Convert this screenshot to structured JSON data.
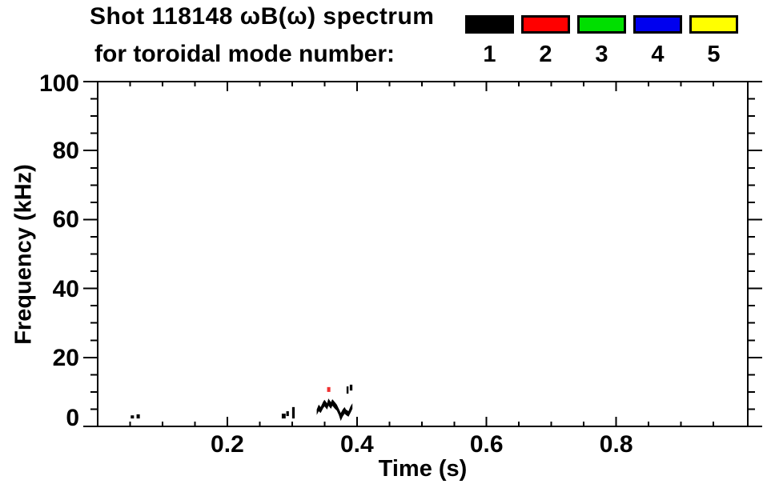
{
  "title": {
    "line1": "Shot 118148 ωB(ω) spectrum",
    "line2": "for toroidal mode number:"
  },
  "legend": {
    "items": [
      {
        "label": "1",
        "color": "#000000"
      },
      {
        "label": "2",
        "color": "#FF0000"
      },
      {
        "label": "3",
        "color": "#00DF00"
      },
      {
        "label": "4",
        "color": "#0000EF"
      },
      {
        "label": "5",
        "color": "#FFFF00"
      }
    ]
  },
  "chart_data": {
    "type": "scatter",
    "title": "Shot 118148 ωB(ω) spectrum for toroidal mode number: 1 2 3 4 5",
    "xlabel": "Time (s)",
    "ylabel": "Frequency (kHz)",
    "xlim": [
      0,
      1.003
    ],
    "ylim": [
      0,
      100
    ],
    "grid": false,
    "legend_position": "top-right",
    "x_major_ticks": [
      0.2,
      0.4,
      0.6,
      0.8
    ],
    "x_tick_labels": [
      "0.2",
      "0.4",
      "0.6",
      "0.8"
    ],
    "x_minor_step": 0.05,
    "y_major_ticks": [
      0,
      20,
      40,
      60,
      80,
      100
    ],
    "y_tick_labels": [
      "0",
      "20",
      "40",
      "60",
      "80",
      "100"
    ],
    "y_minor_step": 5,
    "series": [
      {
        "name": "toroidal mode n=1",
        "color": "#000000",
        "marks": [
          {
            "type": "rect",
            "t": [
              0.051,
              0.056
            ],
            "f": [
              2.3,
              3.2
            ]
          },
          {
            "type": "rect",
            "t": [
              0.06,
              0.065
            ],
            "f": [
              2.3,
              3.5
            ]
          },
          {
            "type": "rect",
            "t": [
              0.284,
              0.29
            ],
            "f": [
              2.3,
              3.7
            ]
          },
          {
            "type": "rect",
            "t": [
              0.291,
              0.295
            ],
            "f": [
              3.0,
              4.4
            ]
          },
          {
            "type": "rect",
            "t": [
              0.3,
              0.304
            ],
            "f": [
              2.3,
              5.6
            ]
          },
          {
            "type": "rect",
            "t": [
              0.384,
              0.387
            ],
            "f": [
              9.5,
              11.6
            ]
          },
          {
            "type": "rect",
            "t": [
              0.389,
              0.393
            ],
            "f": [
              10.4,
              12.1
            ]
          },
          {
            "type": "band",
            "top": [
              [
                0.338,
                4.9
              ],
              [
                0.341,
                6.3
              ],
              [
                0.344,
                5.6
              ],
              [
                0.348,
                7.2
              ],
              [
                0.35,
                7.7
              ],
              [
                0.354,
                6.7
              ],
              [
                0.356,
                8.1
              ],
              [
                0.36,
                7.0
              ],
              [
                0.362,
                7.9
              ],
              [
                0.366,
                7.0
              ],
              [
                0.369,
                6.3
              ],
              [
                0.372,
                5.1
              ],
              [
                0.375,
                3.9
              ],
              [
                0.378,
                4.9
              ],
              [
                0.381,
                5.6
              ],
              [
                0.383,
                4.9
              ],
              [
                0.387,
                4.4
              ],
              [
                0.39,
                5.8
              ],
              [
                0.393,
                6.7
              ]
            ],
            "bottom": [
              [
                0.338,
                3.3
              ],
              [
                0.341,
                4.4
              ],
              [
                0.344,
                3.9
              ],
              [
                0.348,
                5.3
              ],
              [
                0.35,
                5.8
              ],
              [
                0.354,
                4.9
              ],
              [
                0.356,
                6.0
              ],
              [
                0.36,
                5.1
              ],
              [
                0.362,
                6.0
              ],
              [
                0.366,
                5.1
              ],
              [
                0.369,
                4.6
              ],
              [
                0.372,
                3.3
              ],
              [
                0.375,
                1.6
              ],
              [
                0.378,
                2.8
              ],
              [
                0.381,
                3.7
              ],
              [
                0.383,
                3.3
              ],
              [
                0.387,
                2.8
              ],
              [
                0.39,
                3.9
              ],
              [
                0.393,
                5.1
              ]
            ]
          }
        ]
      },
      {
        "name": "toroidal mode n=2",
        "color": "#F03030",
        "marks": [
          {
            "type": "rect",
            "t": [
              0.354,
              0.359
            ],
            "f": [
              10.0,
              11.4
            ]
          }
        ]
      }
    ]
  }
}
